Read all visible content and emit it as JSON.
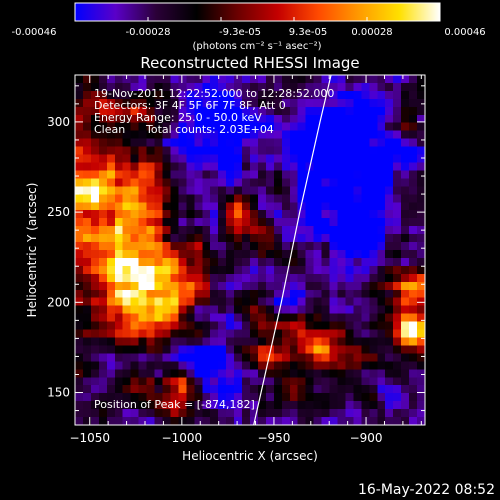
{
  "colorbar": {
    "tick_labels": [
      "-0.00046",
      "-0.00028",
      "-9.3e-05",
      "9.3e-05",
      "0.00028",
      "0.00046"
    ],
    "range": [
      -0.00046,
      0.00046
    ],
    "units_label": "(photons cm⁻² s⁻¹ asec⁻²)",
    "colormap": [
      "#0000ff",
      "#5a00c8",
      "#2b0038",
      "#000000",
      "#6a0000",
      "#c40000",
      "#ff4a00",
      "#ff9a00",
      "#ffe000",
      "#ffffff"
    ]
  },
  "chart_data": {
    "type": "heatmap",
    "title": "Reconstructed RHESSI Image",
    "xlabel": "Heliocentric X (arcsec)",
    "ylabel": "Heliocentric Y (arcsec)",
    "xlim": [
      -1058,
      -868
    ],
    "ylim": [
      132,
      326
    ],
    "x_ticks": [
      -1050,
      -1000,
      -950,
      -900
    ],
    "x_tick_labels": [
      "−1050",
      "−1000",
      "−950",
      "−900"
    ],
    "y_ticks": [
      150,
      200,
      250,
      300
    ],
    "y_tick_labels": [
      "150",
      "200",
      "250",
      "300"
    ],
    "grid": false,
    "limb_curve_x_at_y": [
      [
        132,
        -961
      ],
      [
        150,
        -957
      ],
      [
        200,
        -946
      ],
      [
        250,
        -936
      ],
      [
        300,
        -925
      ],
      [
        326,
        -919
      ]
    ],
    "annotations": [
      "19-Nov-2011 12:22:52.000 to 12:28:52.000",
      "Detectors: 3F 4F 5F 6F 7F 8F, Att 0",
      "Energy Range: 25.0 - 50.0 keV",
      "Clean",
      "Total counts: 2.03E+04",
      "Position of Peak = [-874,182]"
    ],
    "peak_position": [
      -874,
      182
    ],
    "heatmap_seed": 20111119
  },
  "footer": {
    "timestamp": "16-May-2022 08:52"
  }
}
